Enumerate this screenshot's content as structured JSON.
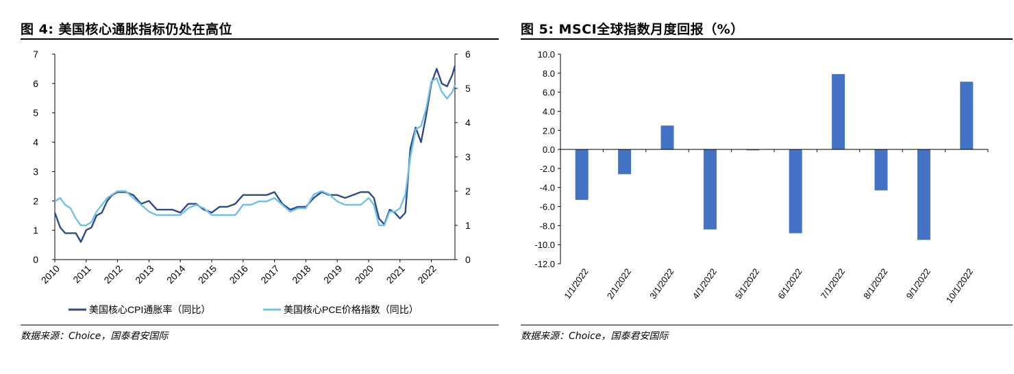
{
  "figure4": {
    "title": "图 4: 美国核心通胀指标仍处在高位",
    "source": "数据来源：Choice，国泰君安国际"
  },
  "figure5": {
    "title": "图 5: MSCI全球指数月度回报（%）",
    "source": "数据来源：Choice，国泰君安国际"
  },
  "chart_data": [
    {
      "type": "line",
      "title": "美国核心通胀指标仍处在高位",
      "x_tick_labels": [
        "2010",
        "2011",
        "2012",
        "2013",
        "2014",
        "2015",
        "2016",
        "2017",
        "2018",
        "2019",
        "2020",
        "2021",
        "2022"
      ],
      "xlim": [
        2010.0,
        2022.75
      ],
      "ylim_left": [
        0,
        7
      ],
      "y_ticks_left": [
        "0",
        "1",
        "2",
        "3",
        "4",
        "5",
        "6",
        "7"
      ],
      "ylim_right": [
        0,
        6
      ],
      "y_ticks_right": [
        "0",
        "1",
        "2",
        "3",
        "4",
        "5",
        "6"
      ],
      "legend_position": "bottom",
      "series": [
        {
          "name": "美国核心CPI通胀率（同比）",
          "axis": "left",
          "color": "#2a4a8c",
          "x": [
            2010.0,
            2010.17,
            2010.33,
            2010.5,
            2010.67,
            2010.83,
            2011.0,
            2011.17,
            2011.33,
            2011.5,
            2011.67,
            2011.83,
            2012.0,
            2012.25,
            2012.5,
            2012.75,
            2013.0,
            2013.25,
            2013.5,
            2013.75,
            2014.0,
            2014.25,
            2014.5,
            2014.75,
            2015.0,
            2015.25,
            2015.5,
            2015.75,
            2016.0,
            2016.25,
            2016.5,
            2016.75,
            2017.0,
            2017.25,
            2017.5,
            2017.75,
            2018.0,
            2018.25,
            2018.5,
            2018.75,
            2019.0,
            2019.25,
            2019.5,
            2019.75,
            2020.0,
            2020.17,
            2020.33,
            2020.5,
            2020.67,
            2020.83,
            2021.0,
            2021.17,
            2021.33,
            2021.5,
            2021.67,
            2021.83,
            2022.0,
            2022.17,
            2022.33,
            2022.5,
            2022.67,
            2022.75
          ],
          "values": [
            1.6,
            1.1,
            0.9,
            0.9,
            0.9,
            0.6,
            1.0,
            1.1,
            1.5,
            1.6,
            2.0,
            2.2,
            2.3,
            2.3,
            2.2,
            1.9,
            2.0,
            1.7,
            1.7,
            1.7,
            1.6,
            1.9,
            1.9,
            1.7,
            1.6,
            1.8,
            1.8,
            1.9,
            2.2,
            2.2,
            2.2,
            2.2,
            2.3,
            1.9,
            1.7,
            1.8,
            1.8,
            2.1,
            2.3,
            2.2,
            2.2,
            2.1,
            2.2,
            2.3,
            2.3,
            2.1,
            1.4,
            1.2,
            1.7,
            1.6,
            1.4,
            1.6,
            3.8,
            4.5,
            4.0,
            4.9,
            6.0,
            6.5,
            6.0,
            5.9,
            6.3,
            6.6
          ]
        },
        {
          "name": "美国核心PCE价格指数（同比）",
          "axis": "right",
          "color": "#6ec0ea",
          "x": [
            2010.0,
            2010.17,
            2010.33,
            2010.5,
            2010.67,
            2010.83,
            2011.0,
            2011.17,
            2011.33,
            2011.5,
            2011.67,
            2011.83,
            2012.0,
            2012.25,
            2012.5,
            2012.75,
            2013.0,
            2013.25,
            2013.5,
            2013.75,
            2014.0,
            2014.25,
            2014.5,
            2014.75,
            2015.0,
            2015.25,
            2015.5,
            2015.75,
            2016.0,
            2016.25,
            2016.5,
            2016.75,
            2017.0,
            2017.25,
            2017.5,
            2017.75,
            2018.0,
            2018.25,
            2018.5,
            2018.75,
            2019.0,
            2019.25,
            2019.5,
            2019.75,
            2020.0,
            2020.17,
            2020.33,
            2020.5,
            2020.67,
            2020.83,
            2021.0,
            2021.17,
            2021.33,
            2021.5,
            2021.67,
            2021.83,
            2022.0,
            2022.17,
            2022.33,
            2022.5,
            2022.67,
            2022.75
          ],
          "values": [
            1.7,
            1.8,
            1.6,
            1.5,
            1.2,
            1.0,
            1.0,
            1.1,
            1.4,
            1.6,
            1.8,
            1.9,
            2.0,
            2.0,
            1.8,
            1.6,
            1.4,
            1.3,
            1.3,
            1.3,
            1.3,
            1.5,
            1.6,
            1.5,
            1.3,
            1.3,
            1.3,
            1.3,
            1.6,
            1.6,
            1.7,
            1.7,
            1.8,
            1.6,
            1.4,
            1.5,
            1.5,
            1.9,
            2.0,
            1.9,
            1.7,
            1.6,
            1.6,
            1.6,
            1.8,
            1.6,
            1.0,
            1.0,
            1.4,
            1.4,
            1.5,
            1.9,
            3.0,
            3.8,
            3.9,
            4.4,
            5.2,
            5.3,
            4.9,
            4.7,
            4.9,
            5.1
          ]
        }
      ]
    },
    {
      "type": "bar",
      "title": "MSCI全球指数月度回报（%）",
      "categories": [
        "1/1/2022",
        "2/1/2022",
        "3/1/2022",
        "4/1/2022",
        "5/1/2022",
        "6/1/2022",
        "7/1/2022",
        "8/1/2022",
        "9/1/2022",
        "10/1/2022"
      ],
      "values": [
        -5.3,
        -2.6,
        2.5,
        -8.4,
        -0.1,
        -8.8,
        7.9,
        -4.3,
        -9.5,
        7.1
      ],
      "ylim": [
        -12,
        10
      ],
      "y_ticks": [
        "10.0",
        "8.0",
        "6.0",
        "4.0",
        "2.0",
        "0.0",
        "-2.0",
        "-4.0",
        "-6.0",
        "-8.0",
        "-10.0",
        "-12.0"
      ],
      "bar_color": "#4472c4",
      "xlabel": "",
      "ylabel": ""
    }
  ]
}
